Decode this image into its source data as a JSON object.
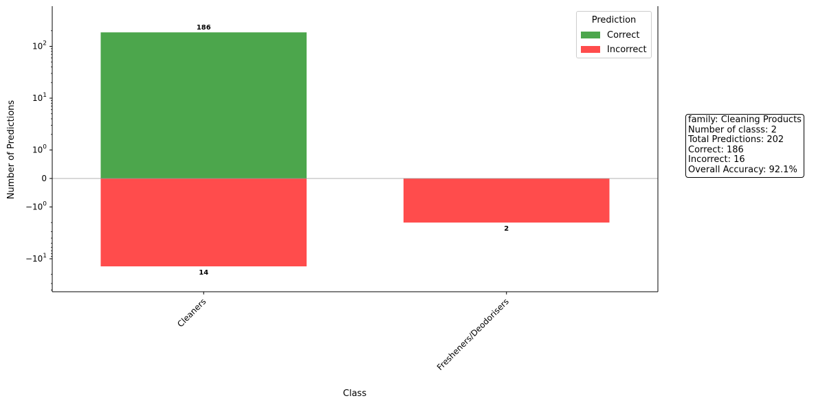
{
  "chart_data": {
    "type": "bar",
    "stacked": true,
    "orientation": "diverging",
    "xlabel": "Class",
    "ylabel": "Number of Predictions",
    "yscale": "symlog",
    "yticks": [
      "10^2",
      "10^1",
      "10^0",
      "0",
      "-10^0",
      "-10^1"
    ],
    "categories": [
      "Cleaners",
      "Fresheners/Deodorisers"
    ],
    "series": [
      {
        "name": "Correct",
        "values": [
          186,
          0
        ],
        "color": "#4ca64c",
        "direction": "up"
      },
      {
        "name": "Incorrect",
        "values": [
          14,
          2
        ],
        "color": "#ff4c4c",
        "direction": "down"
      }
    ],
    "data_labels": [
      {
        "category": "Cleaners",
        "series": "Correct",
        "text": "186"
      },
      {
        "category": "Cleaners",
        "series": "Incorrect",
        "text": "14"
      },
      {
        "category": "Fresheners/Deodorisers",
        "series": "Incorrect",
        "text": "2"
      }
    ],
    "legend": {
      "title": "Prediction",
      "position": "top-right",
      "entries": [
        "Correct",
        "Incorrect"
      ]
    },
    "grid": false,
    "zero_line": true
  },
  "info_box": {
    "lines": [
      "family: Cleaning Products",
      "Number of classs: 2",
      "Total Predictions: 202",
      "Correct: 186",
      "Incorrect: 16",
      "Overall Accuracy: 92.1%"
    ]
  }
}
